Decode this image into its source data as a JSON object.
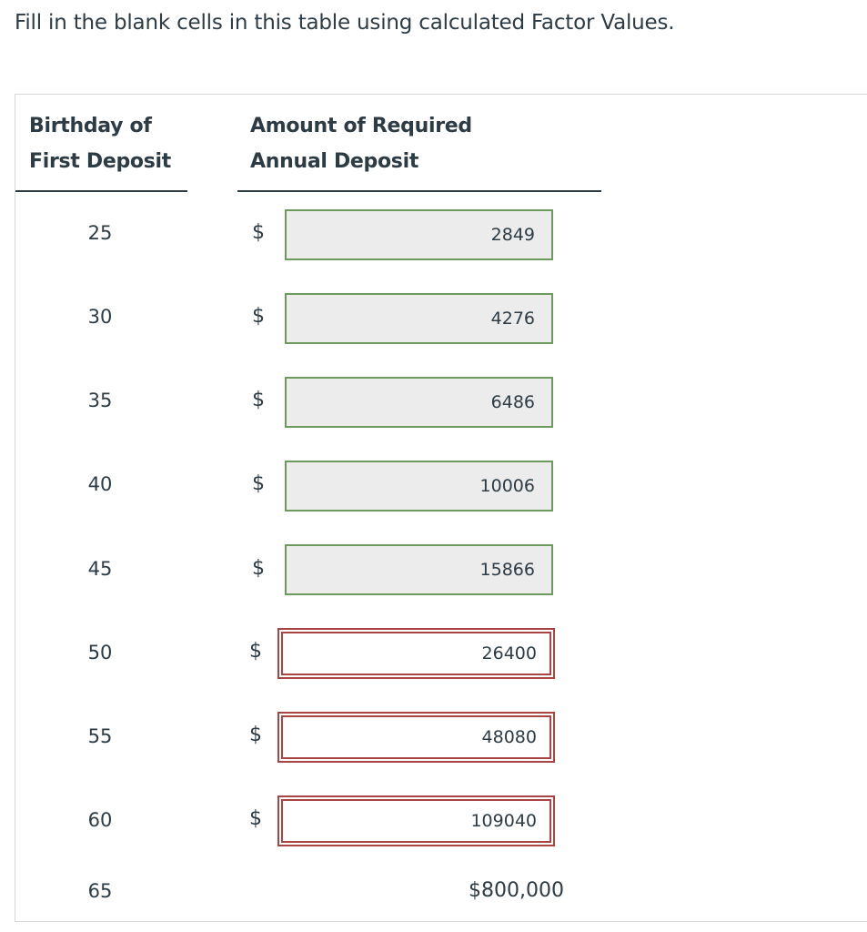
{
  "instructions": "Fill in the blank cells in this table using calculated Factor Values.",
  "table": {
    "header_age_line1": "Birthday of",
    "header_age_line2": "First Deposit",
    "header_amount_line1": "Amount of Required",
    "header_amount_line2": "Annual Deposit",
    "currency_symbol": "$",
    "rows": [
      {
        "age": "25",
        "value": "2849",
        "status": "correct"
      },
      {
        "age": "30",
        "value": "4276",
        "status": "correct"
      },
      {
        "age": "35",
        "value": "6486",
        "status": "correct"
      },
      {
        "age": "40",
        "value": "10006",
        "status": "correct"
      },
      {
        "age": "45",
        "value": "15866",
        "status": "correct"
      },
      {
        "age": "50",
        "value": "26400",
        "status": "incorrect"
      },
      {
        "age": "55",
        "value": "48080",
        "status": "incorrect"
      },
      {
        "age": "60",
        "value": "109040",
        "status": "incorrect"
      }
    ],
    "final_row": {
      "age": "65",
      "value": "$800,000"
    }
  },
  "colors": {
    "correct_border": "#6a9a5c",
    "incorrect_border": "#a94442",
    "text": "#2d3b45"
  }
}
